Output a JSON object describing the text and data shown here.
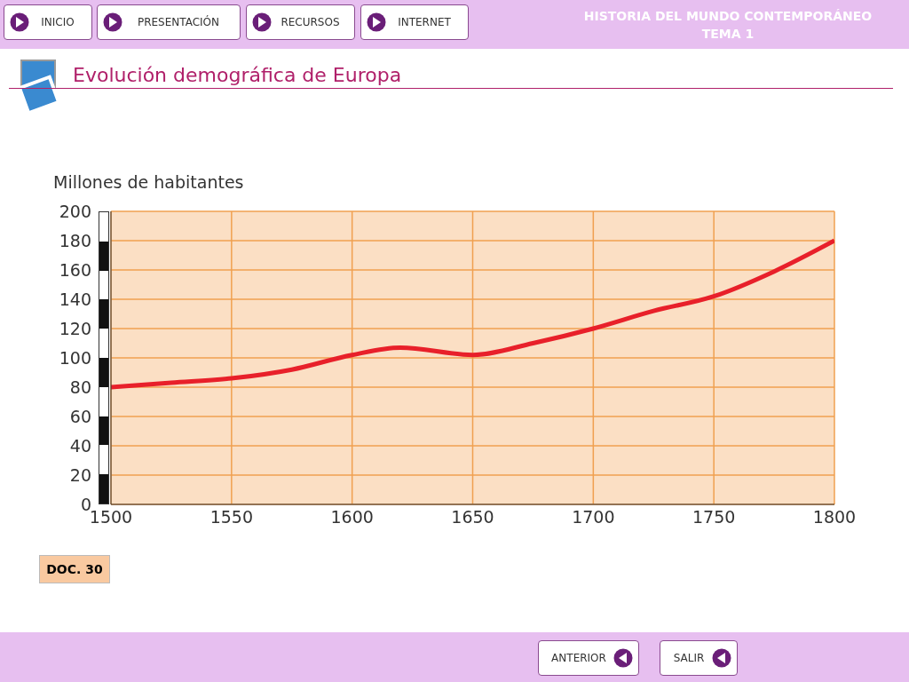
{
  "chart_data": {
    "type": "line",
    "title": "Evolución demográfica de Europa",
    "ylabel": "Millones de habitantes",
    "x": [
      1500,
      1525,
      1550,
      1575,
      1600,
      1620,
      1650,
      1675,
      1700,
      1725,
      1750,
      1775,
      1800
    ],
    "series": [
      {
        "color": "#e8202a",
        "values": [
          80,
          83,
          86,
          92,
          102,
          107,
          102,
          110,
          120,
          132,
          142,
          159,
          180
        ]
      }
    ],
    "xlim": [
      1500,
      1800
    ],
    "xticks": [
      1500,
      1550,
      1600,
      1650,
      1700,
      1750,
      1800
    ],
    "ylim": [
      0,
      200
    ],
    "yticks": [
      0,
      20,
      40,
      60,
      80,
      100,
      120,
      140,
      160,
      180,
      200
    ],
    "grid": true,
    "marker": "none",
    "line_style": "solid",
    "annotations": [
      "INICIO",
      "PRESENTACIÓN",
      "RECURSOS",
      "INTERNET",
      "HISTORIA DEL MUNDO CONTEMPORÁNEO",
      "TEMA 1",
      "DOC. 30",
      "ANTERIOR",
      "SALIR"
    ]
  }
}
